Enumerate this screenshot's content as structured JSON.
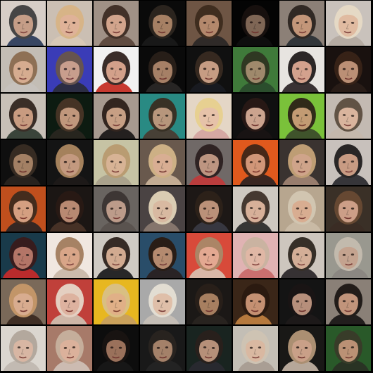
{
  "grid": {
    "rows": 8,
    "cols": 8,
    "background": "#000000",
    "description_free": true
  },
  "tiles": [
    {
      "bg": "#d7cfc7",
      "skin": "#c49a82",
      "hair": "#3a3a3a",
      "shirt": "#2b3b5a"
    },
    {
      "bg": "#cbbfb3",
      "skin": "#e1b196",
      "hair": "#d8b484",
      "shirt": "#d9c9b7"
    },
    {
      "bg": "#a09286",
      "skin": "#d6a78c",
      "hair": "#3a2a20",
      "shirt": "#5a463a"
    },
    {
      "bg": "#0a0a0a",
      "skin": "#b38a6c",
      "hair": "#2e2620",
      "shirt": "#1a1a1a"
    },
    {
      "bg": "#6e5545",
      "skin": "#b98d70",
      "hair": "#3b2a1d",
      "shirt": "#2a2626"
    },
    {
      "bg": "#050505",
      "skin": "#8a6f5d",
      "hair": "#1a1210",
      "shirt": "#101010"
    },
    {
      "bg": "#8c8078",
      "skin": "#c8987a",
      "hair": "#2a221e",
      "shirt": "#2b3036"
    },
    {
      "bg": "#c9c3bc",
      "skin": "#e2bb9f",
      "hair": "#e8dcc6",
      "shirt": "#b4aaa0"
    },
    {
      "bg": "#c4bdb6",
      "skin": "#d8ab8e",
      "hair": "#8a6a4e",
      "shirt": "#c7c2bd"
    },
    {
      "bg": "#3a3cb8",
      "skin": "#d4a68a",
      "hair": "#6a5648",
      "shirt": "#2a2c3a"
    },
    {
      "bg": "#f1f1f1",
      "skin": "#d19a82",
      "hair": "#2a1c18",
      "shirt": "#c42a20"
    },
    {
      "bg": "#0a0a0a",
      "skin": "#b48a6e",
      "hair": "#2a201a",
      "shirt": "#2a2826"
    },
    {
      "bg": "#111111",
      "skin": "#d6a98e",
      "hair": "#3a2c22",
      "shirt": "#1a1c22"
    },
    {
      "bg": "#3f7a3a",
      "skin": "#a88a70",
      "hair": "#2e3220",
      "shirt": "#2a4a2c"
    },
    {
      "bg": "#e8e4e0",
      "skin": "#d29c86",
      "hair": "#1c1616",
      "shirt": "#2b2224"
    },
    {
      "bg": "#1a1210",
      "skin": "#c99b7e",
      "hair": "#3a2418",
      "shirt": "#2a1e18"
    },
    {
      "bg": "#c8c0b8",
      "skin": "#c8987c",
      "hair": "#2e221c",
      "shirt": "#2e3a30"
    },
    {
      "bg": "#0e1c12",
      "skin": "#d0a286",
      "hair": "#4a3628",
      "shirt": "#2a2620"
    },
    {
      "bg": "#a89a90",
      "skin": "#caa084",
      "hair": "#2a1c16",
      "shirt": "#1a1616"
    },
    {
      "bg": "#2a8a84",
      "skin": "#c4977c",
      "hair": "#3a2a1e",
      "shirt": "#4a3a30"
    },
    {
      "bg": "#e4d6c6",
      "skin": "#e6c0a6",
      "hair": "#e8d08c",
      "shirt": "#d4a4a0"
    },
    {
      "bg": "#111111",
      "skin": "#dcb09a",
      "hair": "#2a1a16",
      "shirt": "#1a1414"
    },
    {
      "bg": "#7ac23a",
      "skin": "#c89878",
      "hair": "#2a1e16",
      "shirt": "#3a4a2a"
    },
    {
      "bg": "#c4bab2",
      "skin": "#dcb49c",
      "hair": "#5a4a3c",
      "shirt": "#c6b8ac"
    },
    {
      "bg": "#101010",
      "skin": "#b08a6c",
      "hair": "#3a2e24",
      "shirt": "#2a2420"
    },
    {
      "bg": "#141414",
      "skin": "#d2a488",
      "hair": "#b08a62",
      "shirt": "#1e1a18"
    },
    {
      "bg": "#c6c4a4",
      "skin": "#d8b294",
      "hair": "#b89a6e",
      "shirt": "#a8a08a"
    },
    {
      "bg": "#6a5a4e",
      "skin": "#e2b69a",
      "hair": "#d6b88a",
      "shirt": "#cbb49a"
    },
    {
      "bg": "#706a68",
      "skin": "#c49a84",
      "hair": "#2a1e1e",
      "shirt": "#c03a3a"
    },
    {
      "bg": "#e05a1e",
      "skin": "#d09c80",
      "hair": "#3a2418",
      "shirt": "#2c2222"
    },
    {
      "bg": "#3a3430",
      "skin": "#dcae92",
      "hair": "#c9a67a",
      "shirt": "#a08472"
    },
    {
      "bg": "#c8c2bc",
      "skin": "#c8987e",
      "hair": "#1c1a1a",
      "shirt": "#2a2a2e"
    },
    {
      "bg": "#c0501e",
      "skin": "#d6a68a",
      "hair": "#3a2a1e",
      "shirt": "#2a2424"
    },
    {
      "bg": "#1c1614",
      "skin": "#c6937a",
      "hair": "#2a1a14",
      "shirt": "#4a3428"
    },
    {
      "bg": "#6a6460",
      "skin": "#c4a08e",
      "hair": "#3a3230",
      "shirt": "#5a524e"
    },
    {
      "bg": "#4a4444",
      "skin": "#e4c4aa",
      "hair": "#e6d8bc",
      "shirt": "#8a7a70"
    },
    {
      "bg": "#1e1816",
      "skin": "#c99c82",
      "hair": "#2e221a",
      "shirt": "#3a3a44"
    },
    {
      "bg": "#cfc8c0",
      "skin": "#d8ae96",
      "hair": "#3a2c24",
      "shirt": "#2a2a2a"
    },
    {
      "bg": "#b8a690",
      "skin": "#dcae92",
      "hair": "#d4c8b4",
      "shirt": "#cbbca8"
    },
    {
      "bg": "#3a3028",
      "skin": "#d8a890",
      "hair": "#6a4a34",
      "shirt": "#3a2c24"
    },
    {
      "bg": "#1a3a4a",
      "skin": "#c07a6a",
      "hair": "#3a1a1a",
      "shirt": "#c82a2a"
    },
    {
      "bg": "#f0e8e0",
      "skin": "#d6a080",
      "hair": "#a07a5a",
      "shirt": "#c8b8a8"
    },
    {
      "bg": "#d0cac4",
      "skin": "#d2a88c",
      "hair": "#2a1e18",
      "shirt": "#1a1a1c"
    },
    {
      "bg": "#2a4e6a",
      "skin": "#c09070",
      "hair": "#2a1a10",
      "shirt": "#2a2020"
    },
    {
      "bg": "#d84a3a",
      "skin": "#e4b098",
      "hair": "#a88a6a",
      "shirt": "#d8c0b0"
    },
    {
      "bg": "#e0b4b4",
      "skin": "#e0b8a4",
      "hair": "#c8b4a0",
      "shirt": "#c86a6a"
    },
    {
      "bg": "#cec6be",
      "skin": "#d4ac94",
      "hair": "#2a221c",
      "shirt": "#2a2428"
    },
    {
      "bg": "#9a9890",
      "skin": "#c8a490",
      "hair": "#c6bdb0",
      "shirt": "#8a8682"
    },
    {
      "bg": "#7a6a5a",
      "skin": "#e0b294",
      "hair": "#c89a6a",
      "shirt": "#3a2a20"
    },
    {
      "bg": "#c0403a",
      "skin": "#e0bca8",
      "hair": "#e8dccc",
      "shirt": "#d0c0b0"
    },
    {
      "bg": "#e8b820",
      "skin": "#e0b090",
      "hair": "#d8c08a",
      "shirt": "#c8a060"
    },
    {
      "bg": "#aaaaaa",
      "skin": "#e4c2aa",
      "hair": "#e8e2d6",
      "shirt": "#c8c0b8"
    },
    {
      "bg": "#1c1816",
      "skin": "#b48866",
      "hair": "#2a201a",
      "shirt": "#2a2420"
    },
    {
      "bg": "#3a2618",
      "skin": "#d09a7a",
      "hair": "#2a1a10",
      "shirt": "#c08040"
    },
    {
      "bg": "#141414",
      "skin": "#c49a84",
      "hair": "#1a1414",
      "shirt": "#1e1a1a"
    },
    {
      "bg": "#8a8078",
      "skin": "#c6967c",
      "hair": "#1a1412",
      "shirt": "#1a1616"
    },
    {
      "bg": "#dcd6d0",
      "skin": "#d8b4a0",
      "hair": "#b0a49a",
      "shirt": "#c0b8b0"
    },
    {
      "bg": "#a87a6a",
      "skin": "#e0b6a0",
      "hair": "#c8b2a0",
      "shirt": "#d0c0b8"
    },
    {
      "bg": "#0e0e0e",
      "skin": "#a67a62",
      "hair": "#1a1412",
      "shirt": "#181818"
    },
    {
      "bg": "#1a1a1a",
      "skin": "#b08a70",
      "hair": "#2a2420",
      "shirt": "#242424"
    },
    {
      "bg": "#1a2420",
      "skin": "#c49a80",
      "hair": "#2a201c",
      "shirt": "#2a2a30"
    },
    {
      "bg": "#c4beb6",
      "skin": "#dcb8a0",
      "hair": "#d0c4b4",
      "shirt": "#a89c92"
    },
    {
      "bg": "#1a1816",
      "skin": "#d8ac92",
      "hair": "#b89a7a",
      "shirt": "#c4b4a4"
    },
    {
      "bg": "#2a5a2a",
      "skin": "#c8967c",
      "hair": "#3a3a2a",
      "shirt": "#2a3024"
    }
  ]
}
